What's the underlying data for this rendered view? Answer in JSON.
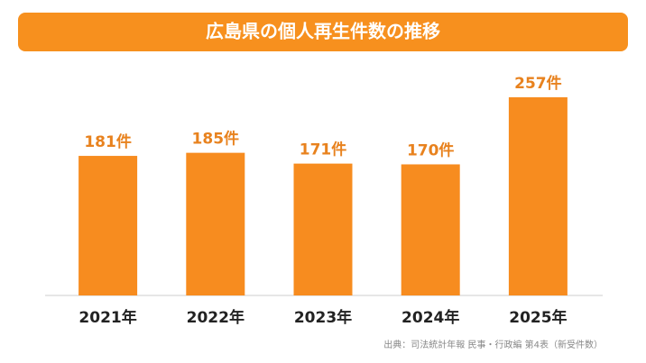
{
  "chart_data": {
    "type": "bar",
    "title": "広島県の個人再生件数の推移",
    "categories": [
      "2021年",
      "2022年",
      "2023年",
      "2024年",
      "2025年"
    ],
    "values": [
      181,
      185,
      171,
      170,
      257
    ],
    "value_labels": [
      "181件",
      "185件",
      "171件",
      "170件",
      "257件"
    ],
    "color": "#f78c1f",
    "source": "出典：司法統計年報 民事・行政編 第4表（新受件数）"
  }
}
